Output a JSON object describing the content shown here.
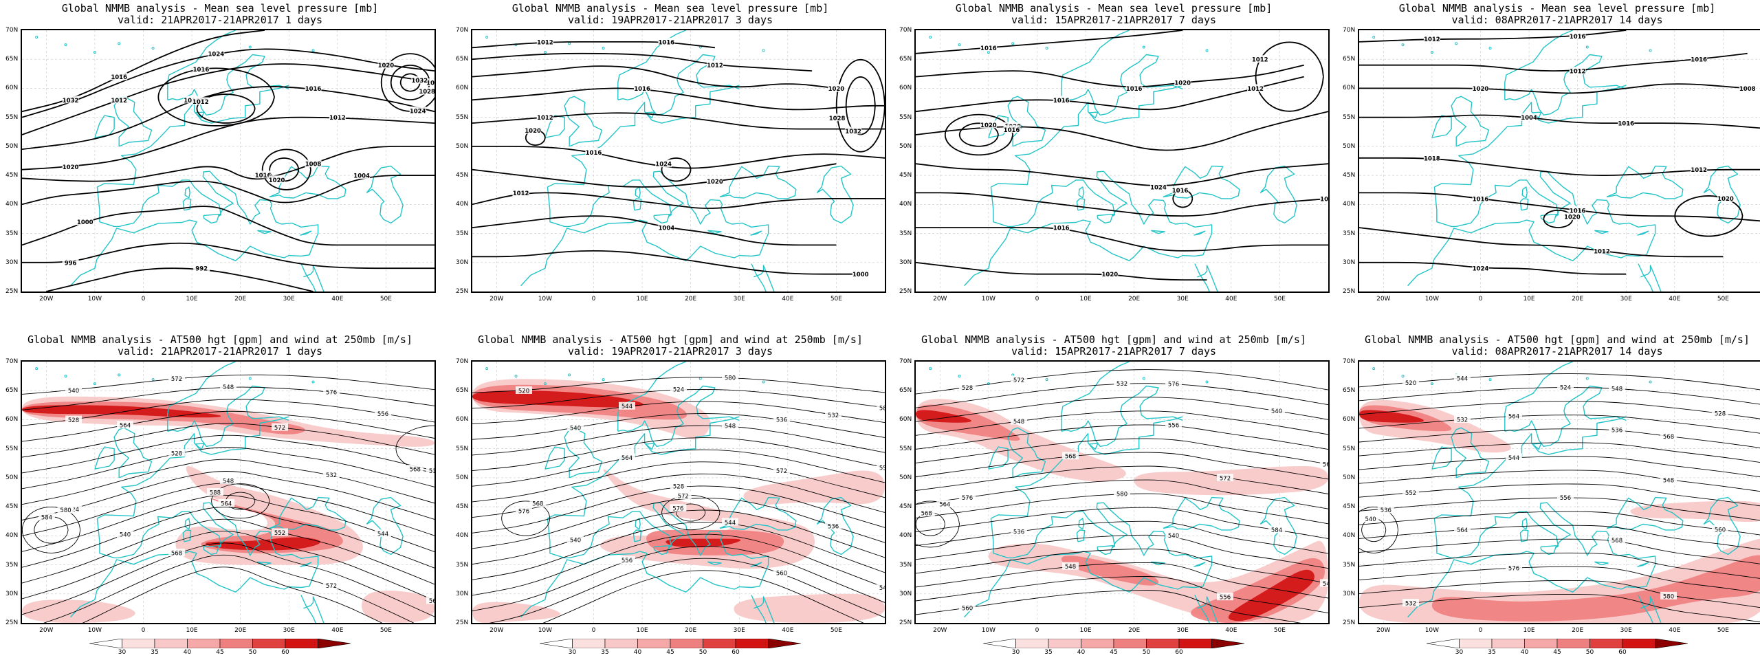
{
  "panels_top": [
    {
      "title": "Global NMMB analysis - Mean sea level pressure [mb]",
      "valid": "valid: 21APR2017-21APR2017  1 days",
      "labels": [
        "1032",
        "1024",
        "1020",
        "1016",
        "1012",
        "1008",
        "1004",
        "1000",
        "996",
        "992",
        "1016",
        "1012",
        "1016",
        "1020",
        "1024",
        "1028",
        "1032",
        "1016",
        "1020",
        "1012",
        "1016",
        "1020"
      ]
    },
    {
      "title": "Global NMMB analysis - Mean sea level pressure [mb]",
      "valid": "valid: 19APR2017-21APR2017  3 days",
      "labels": [
        "1012",
        "1032",
        "1028",
        "1024",
        "1020",
        "1016",
        "1012",
        "1008",
        "1004",
        "1000",
        "1020",
        "1024",
        "1028",
        "1032",
        "1016",
        "1012",
        "1020",
        "1016",
        "1012",
        "1016",
        "1020",
        "1012"
      ]
    },
    {
      "title": "Global NMMB analysis - Mean sea level pressure [mb]",
      "valid": "valid: 15APR2017-21APR2017  7 days",
      "labels": [
        "1012",
        "1016",
        "1012",
        "1028",
        "1024",
        "1020",
        "1016",
        "1020",
        "1016",
        "1020",
        "1016",
        "1012",
        "1016",
        "1020",
        "1016"
      ]
    },
    {
      "title": "Global NMMB analysis - Mean sea level pressure [mb]",
      "valid": "valid: 08APR2017-21APR2017  14 days",
      "labels": [
        "1012",
        "1012",
        "1008",
        "1004",
        "1012",
        "1016",
        "1012",
        "1024",
        "1020",
        "1020",
        "1016",
        "1016",
        "1020",
        "1016",
        "1018",
        "1016"
      ]
    }
  ],
  "panels_bottom": [
    {
      "title": "Global NMMB analysis - AT500 hgt [gpm] and wind at 250mb [m/s]",
      "valid": "valid: 21APR2017-21APR2017  1 days",
      "labels": [
        "540",
        "548",
        "556",
        "564",
        "572",
        "516",
        "528",
        "532",
        "524",
        "548",
        "544",
        "540",
        "552",
        "564",
        "568",
        "572",
        "576",
        "580",
        "584",
        "588",
        "564",
        "568",
        "572",
        "576",
        "528"
      ]
    },
    {
      "title": "Global NMMB analysis - AT500 hgt [gpm] and wind at 250mb [m/s]",
      "valid": "valid: 19APR2017-21APR2017  3 days",
      "labels": [
        "520",
        "524",
        "532",
        "540",
        "548",
        "556",
        "564",
        "572",
        "576",
        "528",
        "536",
        "540",
        "544",
        "548",
        "556",
        "560",
        "564",
        "568",
        "572",
        "576",
        "580",
        "584",
        "544",
        "536"
      ]
    },
    {
      "title": "Global NMMB analysis - AT500 hgt [gpm] and wind at 250mb [m/s]",
      "valid": "valid: 15APR2017-21APR2017  7 days",
      "labels": [
        "528",
        "532",
        "540",
        "548",
        "556",
        "564",
        "568",
        "572",
        "576",
        "580",
        "584",
        "536",
        "540",
        "544",
        "548",
        "556",
        "560",
        "564",
        "568",
        "572",
        "576"
      ]
    },
    {
      "title": "Global NMMB analysis - AT500 hgt [gpm] and wind at 250mb [m/s]",
      "valid": "valid: 08APR2017-21APR2017  14 days",
      "labels": [
        "520",
        "524",
        "528",
        "532",
        "536",
        "540",
        "544",
        "548",
        "552",
        "556",
        "560",
        "564",
        "568",
        "572",
        "576",
        "580",
        "532",
        "536",
        "540",
        "544",
        "548",
        "556",
        "564",
        "568"
      ]
    }
  ],
  "lat_labels": [
    "70N",
    "65N",
    "60N",
    "55N",
    "50N",
    "45N",
    "40N",
    "35N",
    "30N",
    "25N"
  ],
  "lon_labels": [
    "20W",
    "10W",
    "0",
    "10E",
    "20E",
    "30E",
    "40E",
    "50E"
  ],
  "colorbar_labels": [
    "30",
    "35",
    "40",
    "45",
    "50",
    "60"
  ],
  "colors": {
    "coast": "#22c4c8",
    "contour": "#000000",
    "jet_light": "#f8c8c8",
    "jet_mid": "#f08080",
    "jet_dark": "#d21414",
    "jet_darkest": "#8b0000"
  }
}
